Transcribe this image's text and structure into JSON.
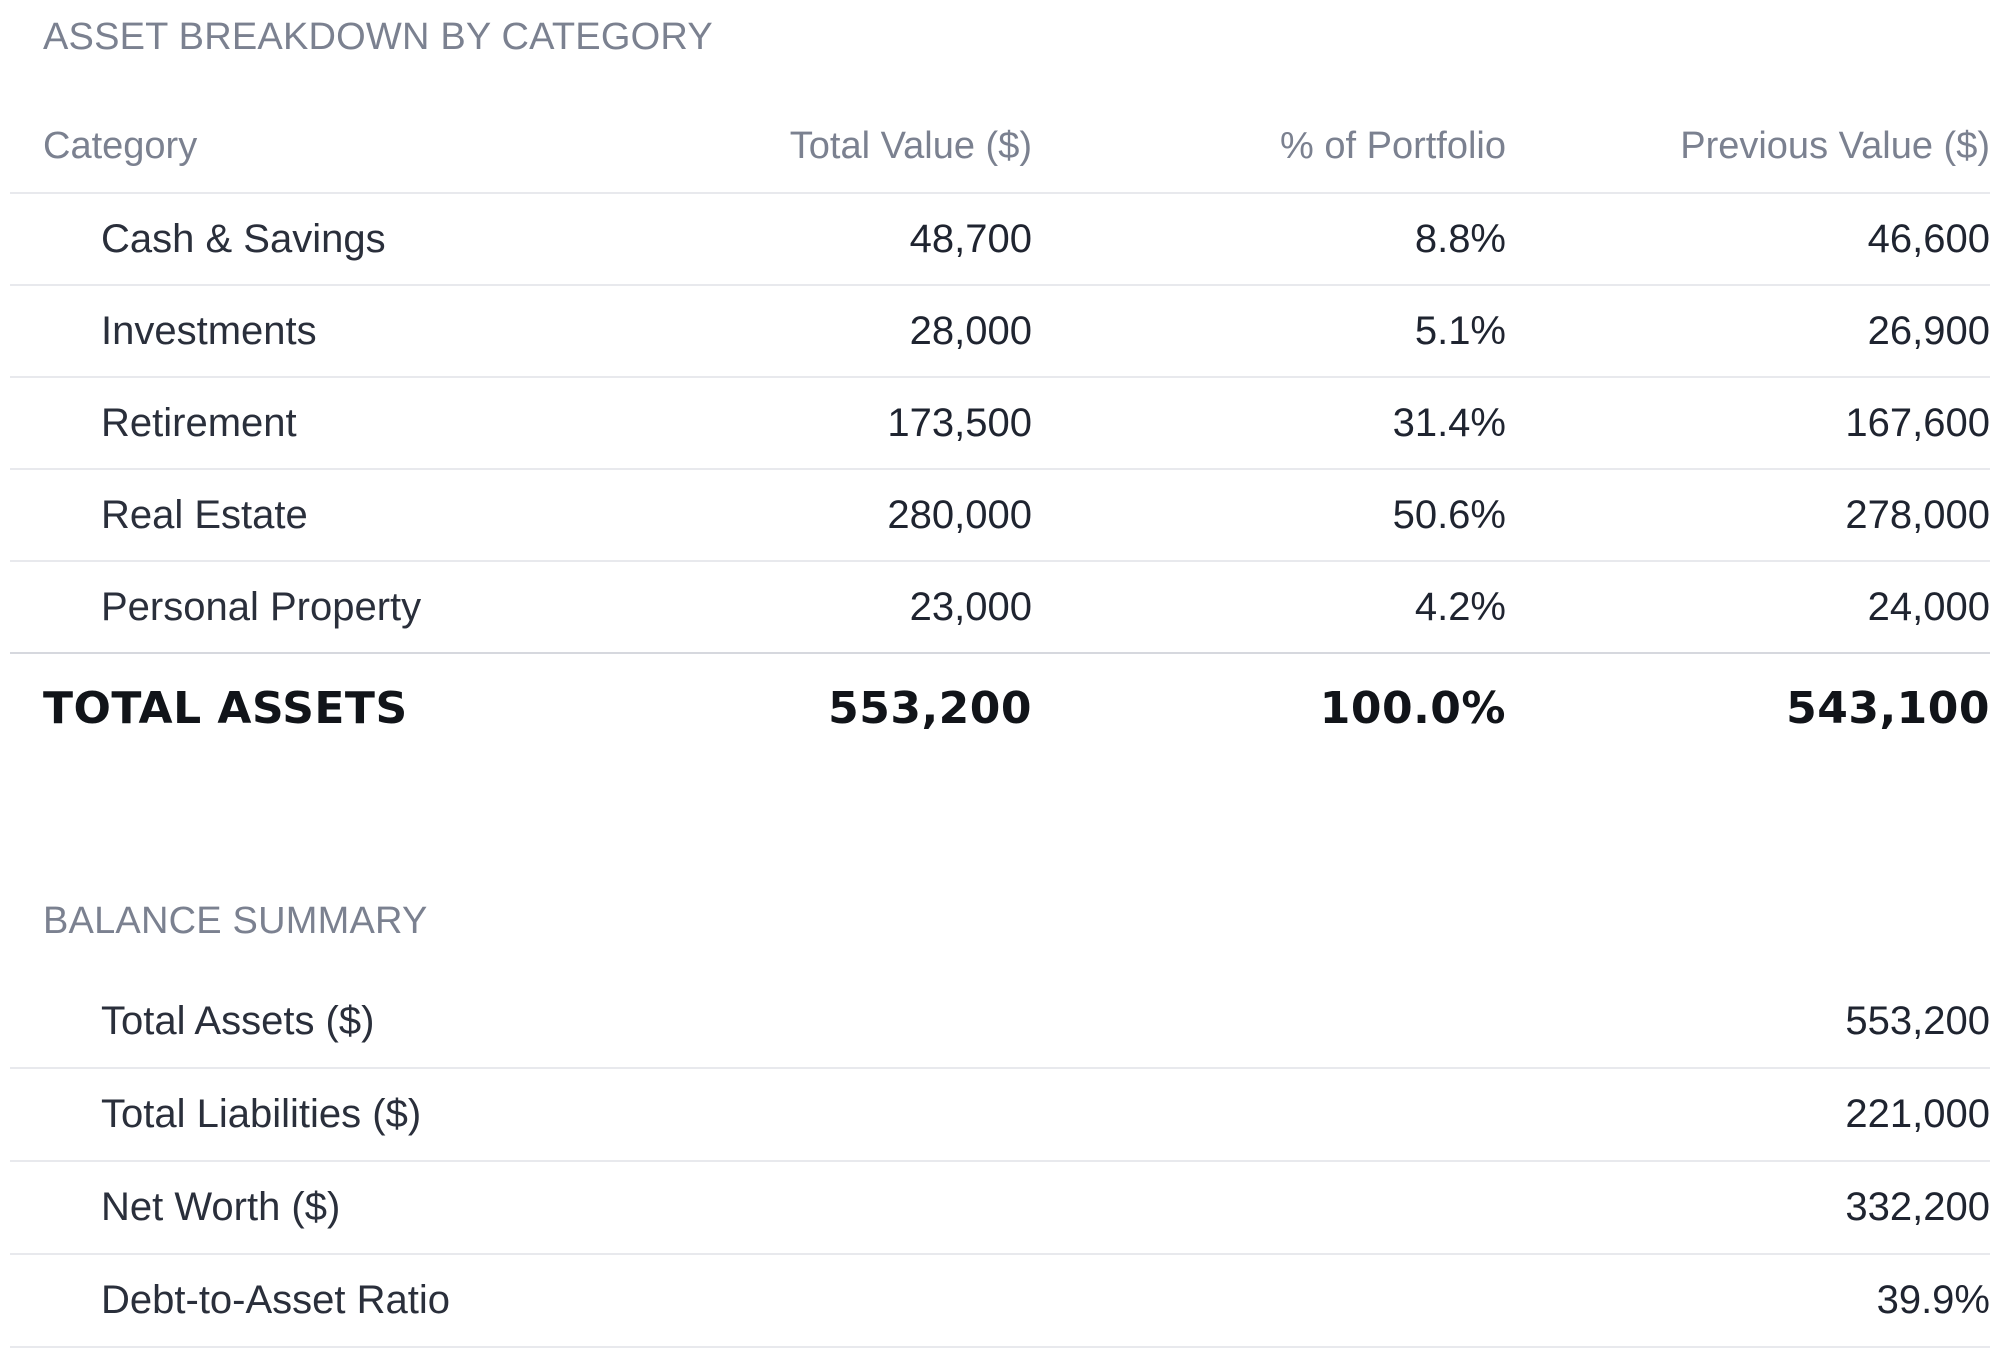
{
  "asset_breakdown": {
    "title": "ASSET BREAKDOWN BY CATEGORY",
    "columns": {
      "category": "Category",
      "total_value": "Total Value ($)",
      "pct_portfolio": "% of Portfolio",
      "previous_value": "Previous Value ($)"
    },
    "rows": [
      {
        "category": "Cash & Savings",
        "total_value": "48,700",
        "pct_portfolio": "8.8%",
        "previous_value": "46,600"
      },
      {
        "category": "Investments",
        "total_value": "28,000",
        "pct_portfolio": "5.1%",
        "previous_value": "26,900"
      },
      {
        "category": "Retirement",
        "total_value": "173,500",
        "pct_portfolio": "31.4%",
        "previous_value": "167,600"
      },
      {
        "category": "Real Estate",
        "total_value": "280,000",
        "pct_portfolio": "50.6%",
        "previous_value": "278,000"
      },
      {
        "category": "Personal Property",
        "total_value": "23,000",
        "pct_portfolio": "4.2%",
        "previous_value": "24,000"
      }
    ],
    "total": {
      "label": "TOTAL ASSETS",
      "total_value": "553,200",
      "pct_portfolio": "100.0%",
      "previous_value": "543,100"
    }
  },
  "balance_summary": {
    "title": "BALANCE SUMMARY",
    "rows": [
      {
        "label": "Total Assets ($)",
        "value": "553,200"
      },
      {
        "label": "Total Liabilities ($)",
        "value": "221,000"
      },
      {
        "label": "Net Worth ($)",
        "value": "332,200"
      },
      {
        "label": "Debt-to-Asset Ratio",
        "value": "39.9%"
      }
    ]
  }
}
